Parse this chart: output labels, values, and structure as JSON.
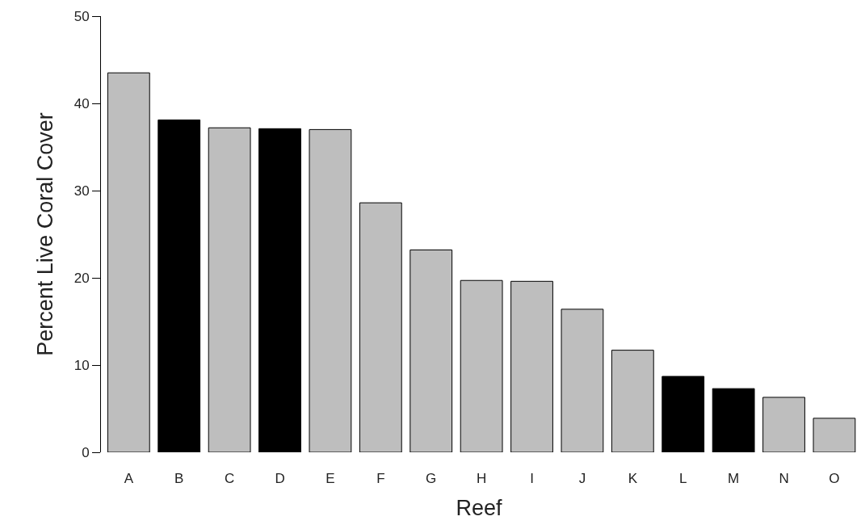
{
  "chart_data": {
    "type": "bar",
    "xlabel": "Reef",
    "ylabel": "Percent Live Coral Cover",
    "categories": [
      "A",
      "B",
      "C",
      "D",
      "E",
      "F",
      "G",
      "H",
      "I",
      "J",
      "K",
      "L",
      "M",
      "N",
      "O"
    ],
    "values": [
      43.5,
      38.1,
      37.2,
      37.1,
      37.0,
      28.6,
      23.2,
      19.7,
      19.6,
      16.4,
      11.7,
      8.7,
      7.3,
      6.3,
      3.9
    ],
    "colors": [
      "#bebebe",
      "#000000",
      "#bebebe",
      "#000000",
      "#bebebe",
      "#bebebe",
      "#bebebe",
      "#bebebe",
      "#bebebe",
      "#bebebe",
      "#bebebe",
      "#000000",
      "#000000",
      "#bebebe",
      "#bebebe"
    ],
    "ylim": [
      0,
      50
    ],
    "yticks": [
      0,
      10,
      20,
      30,
      40,
      50
    ]
  }
}
